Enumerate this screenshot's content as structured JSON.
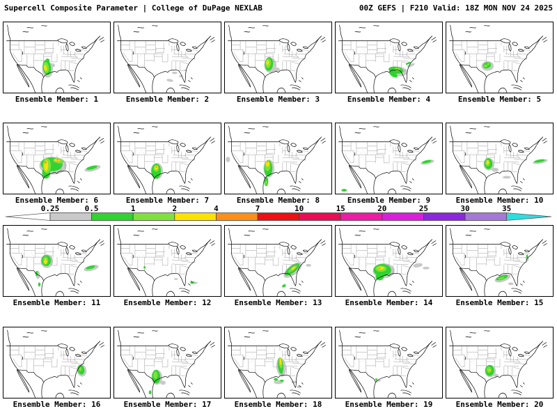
{
  "header": {
    "left": "Supercell Composite Parameter | College of DuPage NEXLAB",
    "right": "00Z GEFS | F210 Valid: 18Z MON NOV 24 2025"
  },
  "colorbar": {
    "tick_values": [
      "0.25",
      "0.5",
      "1",
      "2",
      "4",
      "7",
      "10",
      "15",
      "20",
      "25",
      "30",
      "35"
    ],
    "segment_colors": [
      "#c9c9c9",
      "#2fd42f",
      "#7fe23c",
      "#ffe100",
      "#ff8e17",
      "#ed1111",
      "#e90d55",
      "#ee1ba5",
      "#dc1ddc",
      "#8c26e0",
      "#a478d8"
    ],
    "left_arrow_color": "#ffffff",
    "right_arrow_color": "#2edede"
  },
  "palette": {
    "gray": "#c9c9c9",
    "green1": "#2fd42f",
    "green2": "#7fe23c",
    "yellow": "#ffe100",
    "orange": "#ff8e17",
    "red": "#ed1111"
  },
  "members": [
    {
      "label": "Ensemble Member: 1",
      "blobs": [
        [
          64,
          69,
          8,
          12,
          0,
          "gray"
        ],
        [
          71,
          63,
          4,
          3,
          0,
          "gray"
        ],
        [
          63,
          66,
          6,
          11,
          -8,
          "green1"
        ],
        [
          64,
          56,
          3,
          3,
          0,
          "green1"
        ],
        [
          62,
          66,
          4,
          8,
          -8,
          "green2"
        ],
        [
          61,
          67,
          2,
          4.5,
          -10,
          "yellow"
        ]
      ]
    },
    {
      "label": "Ensemble Member: 2",
      "blobs": [
        [
          88,
          74,
          4,
          1.8,
          0,
          "gray"
        ],
        [
          97,
          79,
          3,
          1.4,
          0,
          "gray"
        ],
        [
          81,
          85,
          5,
          2,
          10,
          "gray"
        ],
        [
          104,
          70,
          2,
          1,
          0,
          "gray"
        ]
      ]
    },
    {
      "label": "Ensemble Member: 3",
      "blobs": [
        [
          66,
          63,
          9,
          11,
          0,
          "gray"
        ],
        [
          75,
          69,
          5,
          3,
          0,
          "gray"
        ],
        [
          64,
          61,
          6,
          10,
          4,
          "green1"
        ],
        [
          63,
          60,
          4,
          7,
          4,
          "green2"
        ],
        [
          62,
          59,
          2,
          3.5,
          0,
          "yellow"
        ]
      ]
    },
    {
      "label": "Ensemble Member: 4",
      "blobs": [
        [
          92,
          72,
          13,
          7,
          5,
          "gray"
        ],
        [
          110,
          63,
          6,
          2,
          -25,
          "gray"
        ],
        [
          88,
          70,
          11,
          5,
          8,
          "green1"
        ],
        [
          84,
          76,
          7,
          3.5,
          35,
          "green1"
        ],
        [
          106,
          60,
          4,
          1.5,
          -25,
          "green1"
        ],
        [
          90,
          69,
          4,
          2.5,
          0,
          "green2"
        ]
      ]
    },
    {
      "label": "Ensemble Member: 5",
      "blobs": [
        [
          60,
          64,
          9,
          7,
          0,
          "gray"
        ],
        [
          59,
          63,
          6,
          4.5,
          -15,
          "green1"
        ],
        [
          57,
          64,
          3,
          2,
          0,
          "green2"
        ],
        [
          61,
          61,
          2,
          1.5,
          0,
          "green2"
        ]
      ]
    },
    {
      "label": "Ensemble Member: 6",
      "blobs": [
        [
          72,
          62,
          20,
          13,
          0,
          "gray"
        ],
        [
          130,
          66,
          12,
          4,
          -14,
          "gray"
        ],
        [
          70,
          60,
          16,
          10,
          3,
          "green1"
        ],
        [
          62,
          72,
          6,
          9,
          0,
          "green1"
        ],
        [
          129,
          65,
          8,
          2.4,
          -14,
          "green1"
        ],
        [
          63,
          62,
          6,
          11,
          0,
          "green2"
        ],
        [
          80,
          55,
          8,
          3.5,
          8,
          "green2"
        ],
        [
          62,
          62,
          3,
          8,
          0,
          "yellow"
        ],
        [
          78,
          54,
          4,
          1.8,
          8,
          "yellow"
        ],
        [
          61,
          57,
          1.4,
          1.6,
          0,
          "orange"
        ],
        [
          79,
          53,
          1.3,
          1,
          0,
          "orange"
        ]
      ]
    },
    {
      "label": "Ensemble Member: 7",
      "blobs": [
        [
          62,
          70,
          9,
          12,
          0,
          "gray"
        ],
        [
          61,
          70,
          7,
          11,
          0,
          "green1"
        ],
        [
          61,
          66,
          4,
          5,
          0,
          "green2"
        ],
        [
          61,
          65,
          2.4,
          3,
          0,
          "yellow"
        ],
        [
          61,
          64,
          1,
          1.3,
          0,
          "orange"
        ]
      ]
    },
    {
      "label": "Ensemble Member: 8",
      "blobs": [
        [
          64,
          66,
          8,
          13,
          0,
          "gray"
        ],
        [
          4,
          53,
          3,
          4,
          0,
          "gray"
        ],
        [
          63,
          66,
          6,
          12,
          0,
          "green1"
        ],
        [
          60,
          85,
          3,
          7,
          0,
          "green1"
        ],
        [
          62,
          62,
          4,
          8,
          0,
          "green2"
        ],
        [
          60,
          87,
          1.4,
          3.5,
          0,
          "green2"
        ],
        [
          62,
          59,
          2.4,
          4.5,
          0,
          "yellow"
        ],
        [
          62,
          56,
          1,
          1.4,
          0,
          "orange"
        ]
      ]
    },
    {
      "label": "Ensemble Member: 9",
      "blobs": [
        [
          134,
          57,
          10,
          3,
          -12,
          "gray"
        ],
        [
          133,
          56,
          7,
          2,
          -12,
          "green1"
        ],
        [
          12,
          98,
          4,
          2,
          0,
          "green1"
        ]
      ]
    },
    {
      "label": "Ensemble Member: 10",
      "blobs": [
        [
          62,
          60,
          8,
          9,
          0,
          "gray"
        ],
        [
          71,
          68,
          5,
          3,
          0,
          "gray"
        ],
        [
          88,
          79,
          6,
          2,
          0,
          "gray"
        ],
        [
          137,
          56,
          11,
          3,
          -10,
          "gray"
        ],
        [
          61,
          59,
          6,
          8,
          -5,
          "green1"
        ],
        [
          136,
          55,
          8,
          2,
          -10,
          "green1"
        ],
        [
          60,
          58,
          3.5,
          5,
          -5,
          "green2"
        ],
        [
          60,
          57,
          2,
          3,
          0,
          "yellow"
        ]
      ]
    },
    {
      "label": "Ensemble Member: 11",
      "blobs": [
        [
          63,
          52,
          9,
          10,
          0,
          "gray"
        ],
        [
          50,
          72,
          3,
          6,
          0,
          "gray"
        ],
        [
          128,
          62,
          11,
          4,
          -14,
          "gray"
        ],
        [
          62,
          51,
          7,
          8,
          -5,
          "green1"
        ],
        [
          48,
          70,
          1.8,
          4,
          0,
          "green1"
        ],
        [
          52,
          86,
          1.8,
          3,
          0,
          "green1"
        ],
        [
          127,
          61,
          7,
          2.2,
          -14,
          "green1"
        ],
        [
          61,
          51,
          4,
          6,
          0,
          "green2"
        ],
        [
          61,
          52,
          2.4,
          4,
          0,
          "yellow"
        ]
      ]
    },
    {
      "label": "Ensemble Member: 12",
      "blobs": [
        [
          90,
          78,
          3,
          1.4,
          0,
          "gray"
        ],
        [
          117,
          84,
          5,
          1.6,
          -8,
          "gray"
        ],
        [
          44,
          61,
          1.4,
          2,
          0,
          "green1"
        ],
        [
          114,
          83,
          3.5,
          1.3,
          -8,
          "green1"
        ]
      ]
    },
    {
      "label": "Ensemble Member: 13",
      "blobs": [
        [
          99,
          65,
          16,
          7,
          -38,
          "gray"
        ],
        [
          122,
          58,
          4,
          2,
          0,
          "gray"
        ],
        [
          98,
          64,
          13,
          5,
          -38,
          "green1"
        ],
        [
          86,
          88,
          3,
          2,
          -30,
          "green1"
        ],
        [
          99,
          63,
          8,
          2.4,
          -38,
          "green2"
        ],
        [
          100,
          62,
          4,
          1.3,
          -38,
          "yellow"
        ]
      ]
    },
    {
      "label": "Ensemble Member: 14",
      "blobs": [
        [
          70,
          66,
          16,
          11,
          0,
          "gray"
        ],
        [
          120,
          58,
          7,
          3,
          -10,
          "gray"
        ],
        [
          132,
          62,
          5,
          2,
          0,
          "gray"
        ],
        [
          68,
          65,
          13,
          9,
          0,
          "green1"
        ],
        [
          64,
          75,
          6,
          5,
          0,
          "green1"
        ],
        [
          66,
          63,
          8,
          4.5,
          0,
          "green2"
        ],
        [
          66,
          62,
          4.5,
          2.2,
          0,
          "yellow"
        ],
        [
          64,
          62,
          1.4,
          1,
          0,
          "orange"
        ]
      ]
    },
    {
      "label": "Ensemble Member: 15",
      "blobs": [
        [
          82,
          77,
          12,
          5,
          -18,
          "gray"
        ],
        [
          94,
          85,
          4,
          2,
          0,
          "gray"
        ],
        [
          118,
          48,
          2.5,
          4,
          0,
          "gray"
        ],
        [
          81,
          76,
          9,
          3,
          -18,
          "green1"
        ],
        [
          118,
          45,
          1.4,
          3,
          0,
          "green1"
        ],
        [
          80,
          77,
          5,
          1.4,
          -18,
          "green2"
        ]
      ]
    },
    {
      "label": "Ensemble Member: 16",
      "blobs": [
        [
          114,
          63,
          7,
          9,
          -12,
          "gray"
        ],
        [
          113,
          62,
          5,
          7,
          -14,
          "green1"
        ],
        [
          112,
          61,
          2,
          3,
          0,
          "green2"
        ]
      ]
    },
    {
      "label": "Ensemble Member: 17",
      "blobs": [
        [
          62,
          73,
          8,
          11,
          0,
          "gray"
        ],
        [
          71,
          81,
          4,
          3,
          0,
          "gray"
        ],
        [
          61,
          72,
          6,
          10,
          -4,
          "green1"
        ],
        [
          52,
          95,
          1.8,
          3,
          0,
          "green1"
        ],
        [
          60,
          70,
          3,
          5.5,
          0,
          "green2"
        ]
      ]
    },
    {
      "label": "Ensemble Member: 18",
      "blobs": [
        [
          82,
          58,
          7,
          14,
          -6,
          "gray"
        ],
        [
          78,
          80,
          7,
          3,
          0,
          "gray"
        ],
        [
          101,
          80,
          4,
          2,
          0,
          "gray"
        ],
        [
          108,
          87,
          3,
          2,
          0,
          "gray"
        ],
        [
          81,
          56,
          4,
          12,
          -6,
          "green1"
        ],
        [
          74,
          76,
          3,
          2,
          0,
          "green1"
        ],
        [
          83,
          78,
          3,
          1.5,
          0,
          "green1"
        ],
        [
          81,
          52,
          2.4,
          8,
          -6,
          "green2"
        ],
        [
          81,
          50,
          1.3,
          5,
          -6,
          "yellow"
        ]
      ]
    },
    {
      "label": "Ensemble Member: 19",
      "blobs": [
        [
          62,
          78,
          4,
          1.6,
          -15,
          "gray"
        ],
        [
          59,
          76,
          1.5,
          1.5,
          0,
          "green1"
        ]
      ]
    },
    {
      "label": "Ensemble Member: 20",
      "blobs": [
        [
          64,
          64,
          8,
          9,
          0,
          "gray"
        ],
        [
          72,
          70,
          4,
          2,
          0,
          "gray"
        ],
        [
          63,
          63,
          6.5,
          8,
          0,
          "green1"
        ],
        [
          62,
          62,
          3.5,
          4.5,
          0,
          "green2"
        ],
        [
          63,
          63,
          1.6,
          1.6,
          0,
          "yellow"
        ],
        [
          63,
          64,
          0.8,
          0.8,
          0,
          "orange"
        ]
      ]
    }
  ]
}
